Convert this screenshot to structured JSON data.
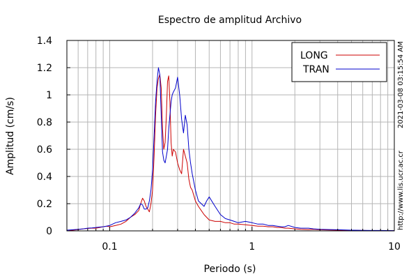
{
  "chart_data": {
    "type": "line",
    "title": "Espectro de amplitud Archivo",
    "xlabel": "Periodo (s)",
    "ylabel": "Amplitud (cm/s)",
    "xscale": "log",
    "xlim": [
      0.05,
      10
    ],
    "ylim": [
      0,
      1.4
    ],
    "x_ticks": [
      0.1,
      1,
      10
    ],
    "x_tick_labels": [
      "0.1",
      "1",
      "10"
    ],
    "y_ticks": [
      0,
      0.2,
      0.4,
      0.6,
      0.8,
      1,
      1.2,
      1.4
    ],
    "y_tick_labels": [
      "0",
      "0.2",
      "0.4",
      "0.6",
      "0.8",
      "1",
      "1.2",
      "1.4"
    ],
    "grid": true,
    "legend": "top-right",
    "series": [
      {
        "name": "LONG",
        "color": "#cc0000",
        "x": [
          0.05,
          0.055,
          0.06,
          0.065,
          0.07,
          0.075,
          0.08,
          0.085,
          0.09,
          0.095,
          0.1,
          0.11,
          0.12,
          0.13,
          0.14,
          0.15,
          0.16,
          0.165,
          0.17,
          0.175,
          0.18,
          0.185,
          0.19,
          0.195,
          0.2,
          0.205,
          0.21,
          0.215,
          0.22,
          0.225,
          0.23,
          0.235,
          0.24,
          0.245,
          0.25,
          0.255,
          0.26,
          0.265,
          0.27,
          0.275,
          0.28,
          0.29,
          0.3,
          0.31,
          0.32,
          0.33,
          0.34,
          0.35,
          0.36,
          0.37,
          0.38,
          0.39,
          0.4,
          0.42,
          0.44,
          0.46,
          0.48,
          0.5,
          0.55,
          0.6,
          0.65,
          0.7,
          0.75,
          0.8,
          0.9,
          1.0,
          1.1,
          1.2,
          1.3,
          1.4,
          1.5,
          1.6,
          1.7,
          1.8,
          2.0,
          2.2,
          2.5,
          2.7,
          3.0,
          3.5,
          4.0,
          5.0,
          6.0,
          7.0,
          8.0,
          10.0
        ],
        "values": [
          0.0,
          0.005,
          0.01,
          0.015,
          0.018,
          0.02,
          0.02,
          0.025,
          0.03,
          0.035,
          0.03,
          0.04,
          0.05,
          0.07,
          0.1,
          0.12,
          0.15,
          0.2,
          0.24,
          0.22,
          0.18,
          0.16,
          0.14,
          0.2,
          0.3,
          0.55,
          0.85,
          1.05,
          1.12,
          1.15,
          1.05,
          0.75,
          0.6,
          0.65,
          0.85,
          1.1,
          1.14,
          0.95,
          0.65,
          0.55,
          0.6,
          0.58,
          0.5,
          0.45,
          0.42,
          0.6,
          0.55,
          0.5,
          0.38,
          0.32,
          0.3,
          0.26,
          0.22,
          0.18,
          0.15,
          0.12,
          0.1,
          0.08,
          0.07,
          0.07,
          0.06,
          0.06,
          0.05,
          0.05,
          0.045,
          0.04,
          0.035,
          0.035,
          0.03,
          0.03,
          0.025,
          0.025,
          0.02,
          0.02,
          0.015,
          0.012,
          0.01,
          0.012,
          0.008,
          0.006,
          0.005,
          0.004,
          0.003,
          0.002,
          0.002,
          0.002
        ]
      },
      {
        "name": "TRAN",
        "color": "#0000cc",
        "x": [
          0.05,
          0.055,
          0.06,
          0.065,
          0.07,
          0.075,
          0.08,
          0.085,
          0.09,
          0.095,
          0.1,
          0.11,
          0.12,
          0.13,
          0.14,
          0.15,
          0.16,
          0.165,
          0.17,
          0.175,
          0.18,
          0.185,
          0.19,
          0.195,
          0.2,
          0.205,
          0.21,
          0.215,
          0.22,
          0.225,
          0.23,
          0.235,
          0.24,
          0.245,
          0.25,
          0.255,
          0.26,
          0.265,
          0.27,
          0.275,
          0.28,
          0.29,
          0.3,
          0.31,
          0.32,
          0.33,
          0.34,
          0.35,
          0.36,
          0.37,
          0.38,
          0.39,
          0.4,
          0.42,
          0.44,
          0.46,
          0.48,
          0.5,
          0.55,
          0.6,
          0.65,
          0.7,
          0.75,
          0.8,
          0.9,
          1.0,
          1.1,
          1.2,
          1.3,
          1.4,
          1.5,
          1.6,
          1.7,
          1.8,
          2.0,
          2.2,
          2.5,
          2.7,
          3.0,
          3.5,
          4.0,
          5.0,
          6.0,
          7.0,
          8.0,
          10.0
        ],
        "values": [
          0.005,
          0.008,
          0.012,
          0.015,
          0.02,
          0.022,
          0.025,
          0.028,
          0.03,
          0.035,
          0.04,
          0.06,
          0.07,
          0.08,
          0.1,
          0.13,
          0.17,
          0.2,
          0.19,
          0.16,
          0.16,
          0.17,
          0.22,
          0.3,
          0.45,
          0.7,
          0.95,
          1.1,
          1.2,
          1.15,
          0.85,
          0.58,
          0.52,
          0.5,
          0.55,
          0.6,
          0.75,
          0.85,
          0.95,
          1.0,
          1.02,
          1.05,
          1.13,
          1.0,
          0.82,
          0.72,
          0.85,
          0.78,
          0.6,
          0.5,
          0.42,
          0.36,
          0.3,
          0.22,
          0.2,
          0.18,
          0.22,
          0.25,
          0.18,
          0.12,
          0.09,
          0.08,
          0.07,
          0.06,
          0.07,
          0.06,
          0.05,
          0.05,
          0.04,
          0.04,
          0.035,
          0.03,
          0.03,
          0.04,
          0.025,
          0.02,
          0.02,
          0.015,
          0.012,
          0.01,
          0.008,
          0.005,
          0.004,
          0.003,
          0.003,
          0.002
        ]
      }
    ]
  },
  "side_labels": {
    "timestamp": "2021-03-08 03:15:54 AM",
    "url": "http://www.lis.ucr.ac.cr"
  }
}
